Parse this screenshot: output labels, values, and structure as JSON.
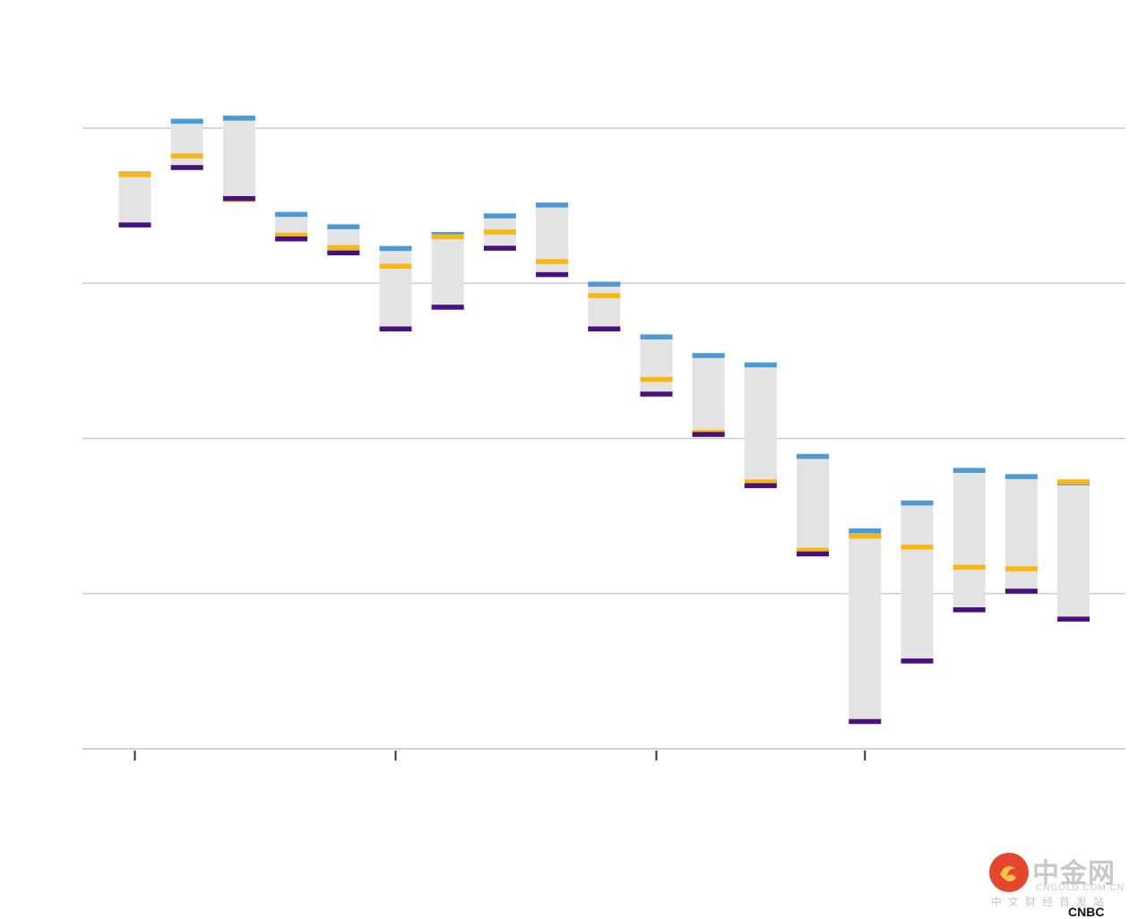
{
  "chart_data": {
    "type": "floating-bar",
    "note": "Each bar is a range (low to high) with three tick markers: blue at top, orange in between, purple at bottom. Values read in relative units where gridlines are evenly spaced.",
    "title": "",
    "xlabel": "",
    "ylabel": "",
    "ylim": [
      0,
      4
    ],
    "yticks": [
      0,
      1,
      2,
      3,
      4
    ],
    "grid": true,
    "bars": [
      {
        "high": 3.72,
        "blue": 3.72,
        "orange": 3.7,
        "purple": 3.36,
        "low": 3.36
      },
      {
        "high": 4.06,
        "blue": 4.06,
        "orange": 3.82,
        "purple": 3.73,
        "low": 3.73
      },
      {
        "high": 4.08,
        "blue": 4.08,
        "orange": 3.54,
        "purple": 3.53,
        "low": 3.53
      },
      {
        "high": 3.46,
        "blue": 3.46,
        "orange": 3.31,
        "purple": 3.27,
        "low": 3.27
      },
      {
        "high": 3.38,
        "blue": 3.38,
        "orange": 3.23,
        "purple": 3.18,
        "low": 3.18
      },
      {
        "high": 3.24,
        "blue": 3.24,
        "orange": 3.11,
        "purple": 2.69,
        "low": 2.69
      },
      {
        "high": 3.33,
        "blue": 3.33,
        "orange": 3.3,
        "purple": 2.83,
        "low": 2.83
      },
      {
        "high": 3.45,
        "blue": 3.45,
        "orange": 3.33,
        "purple": 3.21,
        "low": 3.21
      },
      {
        "high": 3.52,
        "blue": 3.52,
        "orange": 3.14,
        "purple": 3.04,
        "low": 3.04
      },
      {
        "high": 3.01,
        "blue": 3.01,
        "orange": 2.92,
        "purple": 2.69,
        "low": 2.69
      },
      {
        "high": 2.67,
        "blue": 2.67,
        "orange": 2.38,
        "purple": 2.27,
        "low": 2.27
      },
      {
        "high": 2.55,
        "blue": 2.55,
        "orange": 2.04,
        "purple": 2.01,
        "low": 2.01
      },
      {
        "high": 2.49,
        "blue": 2.49,
        "orange": 1.72,
        "purple": 1.68,
        "low": 1.68
      },
      {
        "high": 1.9,
        "blue": 1.9,
        "orange": 1.28,
        "purple": 1.24,
        "low": 1.24
      },
      {
        "high": 1.42,
        "blue": 1.42,
        "orange": 1.37,
        "purple": 0.16,
        "low": 0.16
      },
      {
        "high": 1.6,
        "blue": 1.6,
        "orange": 1.3,
        "purple": 0.55,
        "low": 0.55
      },
      {
        "high": 1.81,
        "blue": 1.81,
        "orange": 1.17,
        "purple": 0.88,
        "low": 0.88
      },
      {
        "high": 1.77,
        "blue": 1.77,
        "orange": 1.16,
        "purple": 1.0,
        "low": 1.0
      },
      {
        "high": 1.73,
        "blue": 1.73,
        "orange": 1.72,
        "purple": 0.82,
        "low": 0.82
      }
    ],
    "xticks_at_bar_index": [
      0,
      5,
      10,
      14
    ]
  },
  "colors": {
    "range": "#e3e3e3",
    "blue": "#4a9ad8",
    "orange": "#f7b813",
    "purple": "#48107e",
    "grid": "#cccccc",
    "tick": "#333333"
  },
  "watermark": {
    "logo_text": "中金网",
    "domain_text": "CNGOLD.COM.CN",
    "sub_text": "中文财经首发站",
    "brand": "CNBC"
  }
}
